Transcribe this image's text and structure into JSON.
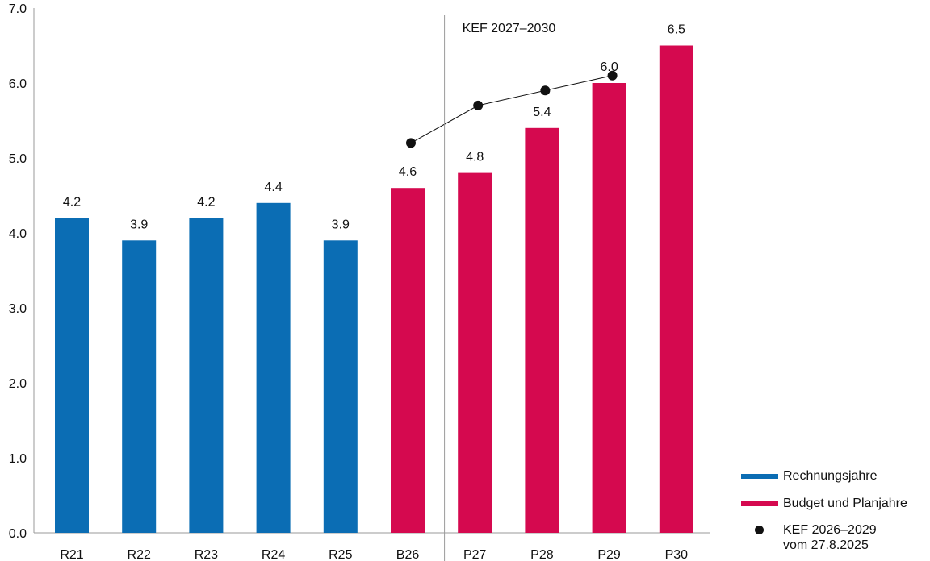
{
  "chart_data": {
    "type": "bar",
    "categories": [
      "R21",
      "R22",
      "R23",
      "R24",
      "R25",
      "B26",
      "P27",
      "P28",
      "P29",
      "P30"
    ],
    "series": [
      {
        "name": "Rechnungsjahre",
        "color": "#0b6db4",
        "values": [
          4.2,
          3.9,
          4.2,
          4.4,
          3.9,
          null,
          null,
          null,
          null,
          null
        ]
      },
      {
        "name": "Budget und Planjahre",
        "color": "#d5094f",
        "values": [
          null,
          null,
          null,
          null,
          null,
          4.6,
          4.8,
          5.4,
          6.0,
          6.5
        ]
      }
    ],
    "data_labels": [
      "4.2",
      "3.9",
      "4.2",
      "4.4",
      "3.9",
      "4.6",
      "4.8",
      "5.4",
      "6.0",
      "6.5"
    ],
    "line_series": {
      "name_line1": "KEF 2026–2029",
      "name_line2": "vom 27.8.2025",
      "color": "#111111",
      "categories": [
        "B26",
        "P27",
        "P28",
        "P29"
      ],
      "values": [
        5.2,
        5.7,
        5.9,
        6.1
      ]
    },
    "annotation": {
      "text": "KEF 2027–2030",
      "divider_between": [
        "B26",
        "P27"
      ]
    },
    "ylim": [
      0,
      7
    ],
    "yticks": [
      "0.0",
      "1.0",
      "2.0",
      "3.0",
      "4.0",
      "5.0",
      "6.0",
      "7.0"
    ],
    "title": "",
    "xlabel": "",
    "ylabel": "",
    "grid": false,
    "legend_position": "bottom-right"
  }
}
